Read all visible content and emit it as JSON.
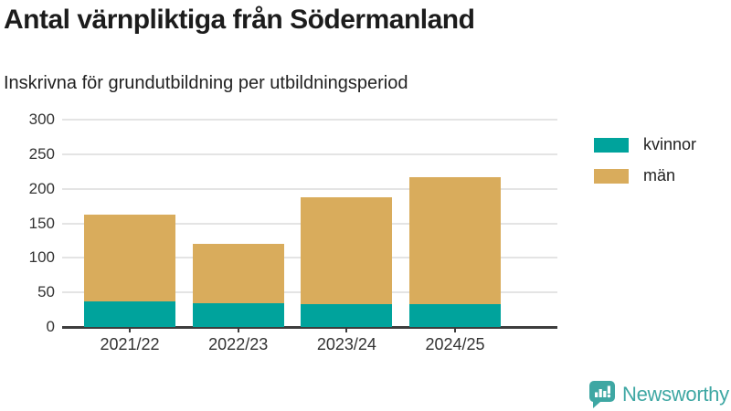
{
  "header": {
    "title": "Antal värnpliktiga från Södermanland",
    "subtitle": "Inskrivna för grundutbildning per utbildningsperiod"
  },
  "chart_data": {
    "type": "bar",
    "stacked": true,
    "title": "Antal värnpliktiga från Södermanland",
    "subtitle": "Inskrivna för grundutbildning per utbildningsperiod",
    "categories": [
      "2021/22",
      "2022/23",
      "2023/24",
      "2024/25"
    ],
    "series": [
      {
        "name": "kvinnor",
        "color": "#00a39c",
        "values": [
          37,
          35,
          33,
          33
        ]
      },
      {
        "name": "män",
        "color": "#d9ac5c",
        "values": [
          126,
          85,
          155,
          184
        ]
      }
    ],
    "stack_totals": [
      163,
      120,
      188,
      217
    ],
    "xlabel": "",
    "ylabel": "",
    "ylim": [
      0,
      300
    ],
    "yticks": [
      0,
      50,
      100,
      150,
      200,
      250,
      300
    ],
    "grid": true,
    "legend_position": "top-right"
  },
  "footer": {
    "brand": "Newsworthy"
  },
  "colors": {
    "kvinnor": "#00a39c",
    "man": "#d9ac5c",
    "brand_teal": "#3ea7a3",
    "axis_text": "#333333",
    "grid_line": "#e4e4e4",
    "axis_line": "#3d3d3d"
  }
}
